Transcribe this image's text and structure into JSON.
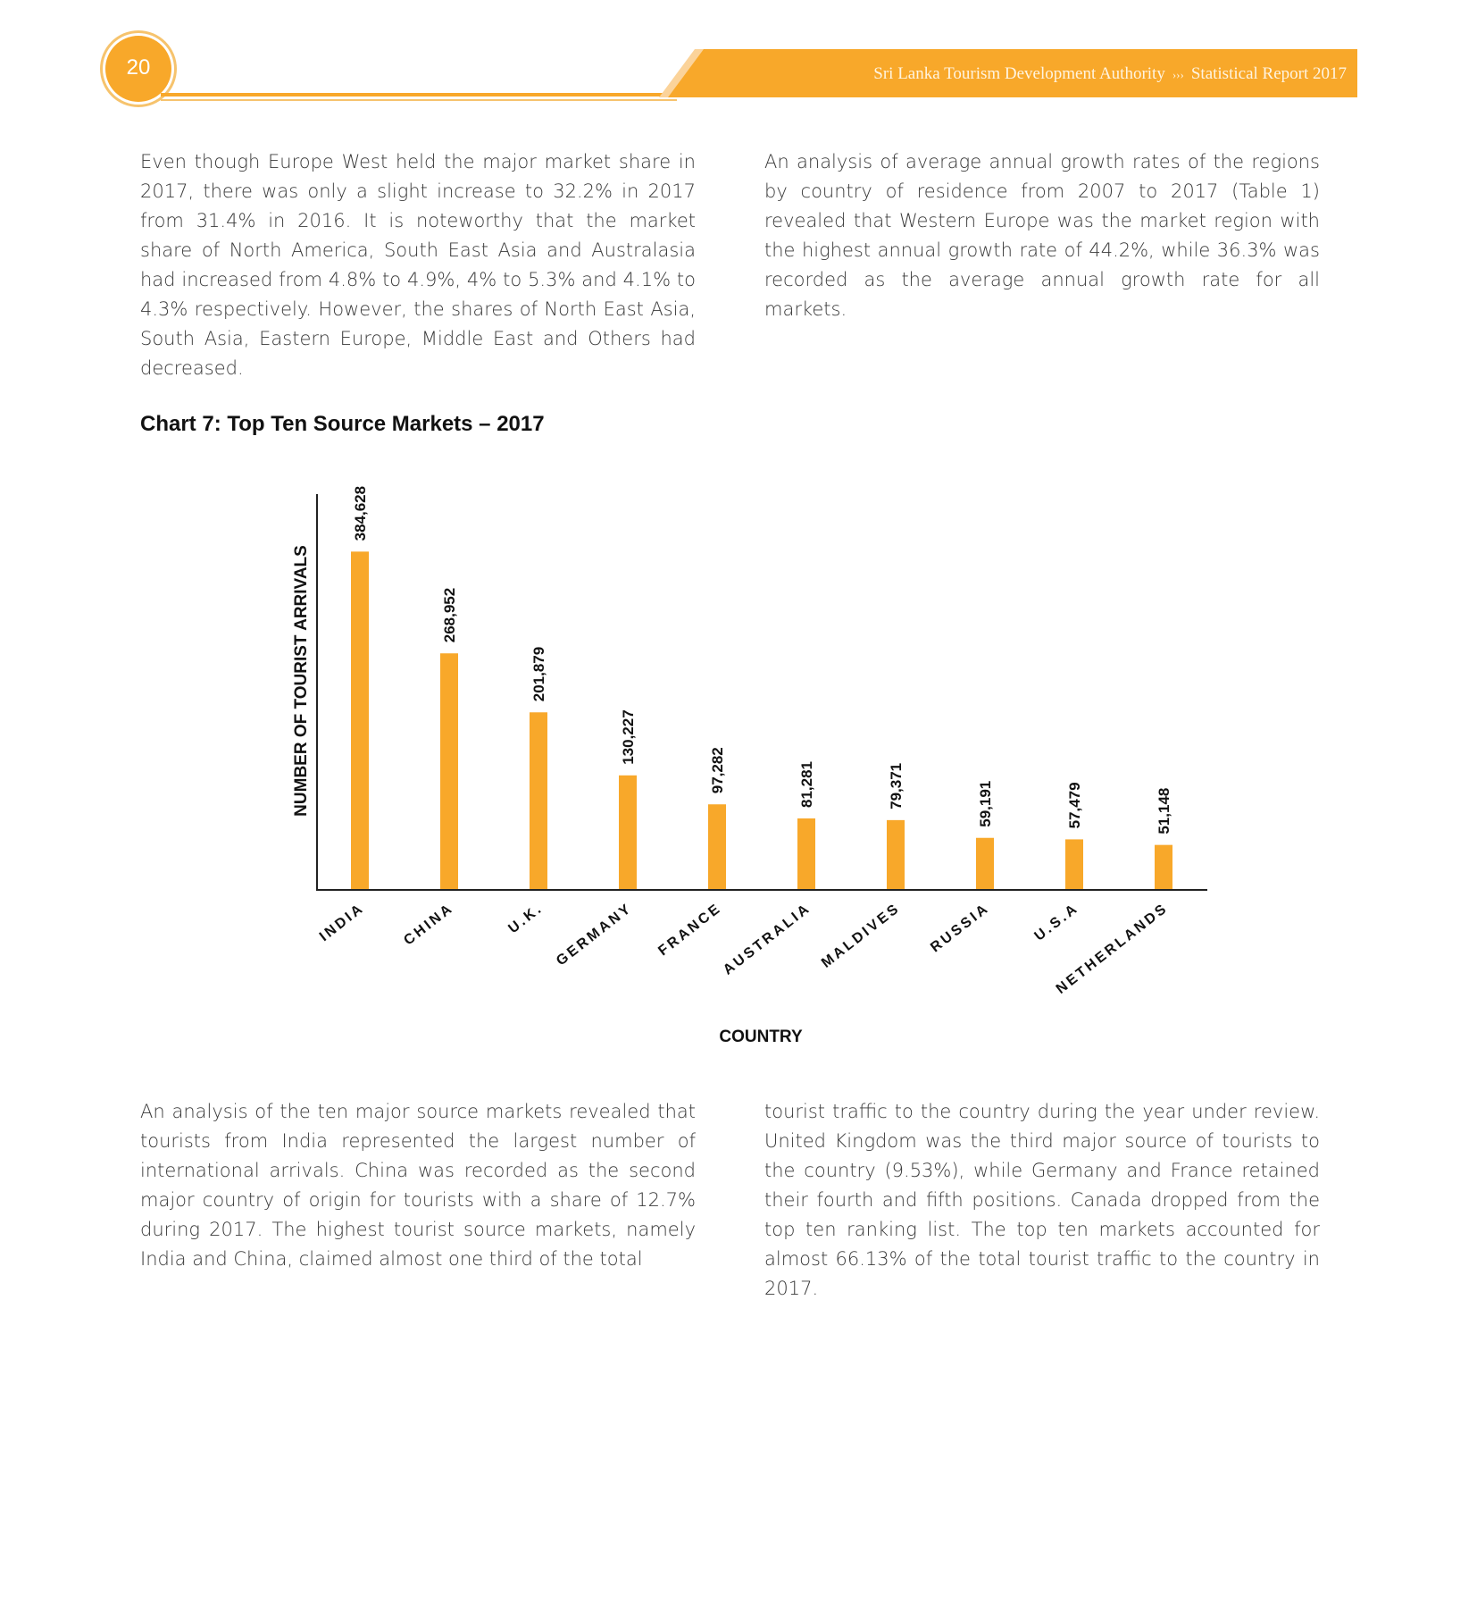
{
  "header": {
    "page_number": "20",
    "org": "Sri Lanka Tourism Development Authority",
    "separator": "›››",
    "report": "Statistical Report 2017"
  },
  "paragraphs": {
    "p1": "Even though Europe West held the major market share in 2017, there was only a slight increase to 32.2% in 2017 from 31.4% in 2016. It is noteworthy that the market share of North America, South East Asia and Australasia had increased from 4.8% to 4.9%, 4% to 5.3% and 4.1% to 4.3% respectively. However, the shares of North East Asia, South Asia, Eastern Europe, Middle East and Others had decreased.",
    "p2": "An analysis of average annual growth rates of the regions by country of residence from 2007 to 2017 (Table 1) revealed that Western Europe was the market region with the highest annual growth rate of 44.2%, while 36.3% was recorded as the average annual growth rate for all markets.",
    "p3": "An analysis of the ten major source markets revealed that tourists from India represented the largest number of international arrivals. China was recorded as the second major country of origin for tourists with a share of 12.7% during 2017. The highest tourist source markets, namely India and China, claimed almost one third of the total",
    "p4": "tourist traffic to the country during the year under review. United Kingdom was the third major source of tourists to the country (9.53%), while Germany and France retained their fourth and fifth positions. Canada dropped from the top ten ranking list. The top ten markets accounted for almost 66.13% of the total tourist traffic to the country in 2017."
  },
  "chart_title": "Chart 7: Top Ten Source Markets – 2017",
  "chart_data": {
    "type": "bar",
    "title": "",
    "categories": [
      "INDIA",
      "CHINA",
      "U.K.",
      "GERMANY",
      "FRANCE",
      "AUSTRALIA",
      "MALDIVES",
      "RUSSIA",
      "U.S.A",
      "NETHERLANDS"
    ],
    "values": [
      384628,
      268952,
      201879,
      130227,
      97282,
      81281,
      79371,
      59191,
      57479,
      51148
    ],
    "value_labels": [
      "384,628",
      "268,952",
      "201,879",
      "130,227",
      "97,282",
      "81,281",
      "79,371",
      "59,191",
      "57,479",
      "51,148"
    ],
    "xlabel": "COUNTRY",
    "ylabel": "NUMBER OF TOURIST ARRIVALS",
    "ylim": [
      0,
      450000
    ],
    "grid": false,
    "bar_color": "#f8a82a"
  }
}
